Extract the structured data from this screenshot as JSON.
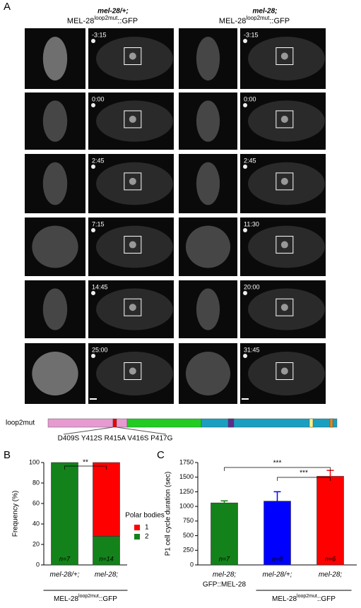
{
  "panel_a": {
    "label": "A",
    "left_header": {
      "line1": "mel-28/+;",
      "line2": [
        "MEL-28",
        "loop2mut",
        "::GFP"
      ]
    },
    "right_header": {
      "line1": "mel-28;",
      "line2": [
        "MEL-28",
        "loop2mut",
        "::GFP"
      ]
    },
    "left_times": [
      "-3:15",
      "0:00",
      "2:45",
      "7:15",
      "14:45",
      "25:00"
    ],
    "right_times": [
      "-3:15",
      "0:00",
      "2:45",
      "11:30",
      "20:00",
      "31:45"
    ]
  },
  "domain_bar": {
    "label": "loop2mut",
    "mutations": "D409S Y412S R415A V416S P417G"
  },
  "chart_data": [
    {
      "type": "bar",
      "panel": "B",
      "stacked": true,
      "ylabel": "Frequency (%)",
      "categories": [
        "mel-28/+;",
        "mel-28;"
      ],
      "group_label": [
        "MEL-28",
        "loop2mut",
        "::GFP"
      ],
      "series": [
        {
          "name": "1",
          "color": "#ff0000",
          "values": [
            0,
            72
          ]
        },
        {
          "name": "2",
          "color": "#13821a",
          "values": [
            100,
            28
          ]
        }
      ],
      "n_labels": [
        "n=7",
        "n=14"
      ],
      "legend_title": "Polar bodies",
      "significance": "**",
      "ylim": [
        0,
        100
      ],
      "yticks": [
        0,
        20,
        40,
        60,
        80,
        100
      ]
    },
    {
      "type": "bar",
      "panel": "C",
      "stacked": false,
      "ylabel": "P1 cell cycle duration (sec)",
      "categories": [
        "mel-28;",
        "mel-28/+;",
        "mel-28;"
      ],
      "category_sublabel": "GFP::MEL-28",
      "group_label": [
        "MEL-28",
        "loop2mut",
        "::GFP"
      ],
      "values": [
        1060,
        1090,
        1515
      ],
      "errors": [
        35,
        160,
        100
      ],
      "colors": [
        "#13821a",
        "#0000ff",
        "#ff0000"
      ],
      "n_labels": [
        "n=7",
        "n=8",
        "n=6"
      ],
      "significance": [
        "***",
        "***"
      ],
      "ylim": [
        0,
        1750
      ],
      "yticks": [
        0,
        250,
        500,
        750,
        1000,
        1250,
        1500,
        1750
      ]
    }
  ]
}
